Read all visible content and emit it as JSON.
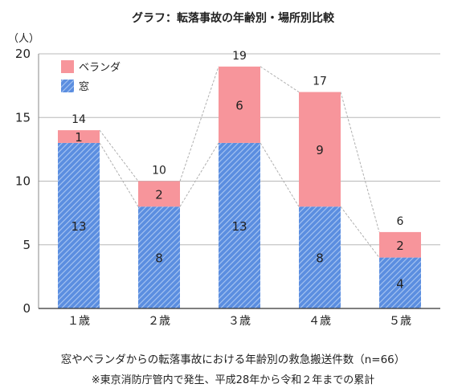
{
  "title": "グラフ：転落事故の年齢別・場所別比較",
  "captions": {
    "line1": "窓やベランダからの転落事故における年齢別の救急搬送件数（n=66）",
    "line2": "※東京消防庁管内で発生、平成28年から令和２年までの累計"
  },
  "colors": {
    "window": "#5b8ee0",
    "window_hatch": "#a9c6f2",
    "veranda": "#f7959b",
    "grid": "#b8b8b8",
    "connector": "#b0b0b0"
  },
  "chart_data": {
    "type": "bar",
    "stacked": true,
    "unit_label": "（人）",
    "categories": [
      "１歳",
      "２歳",
      "３歳",
      "４歳",
      "５歳"
    ],
    "series": [
      {
        "name": "窓",
        "values": [
          13,
          8,
          13,
          8,
          4
        ]
      },
      {
        "name": "ベランダ",
        "values": [
          1,
          2,
          6,
          9,
          2
        ]
      }
    ],
    "totals": [
      14,
      10,
      19,
      17,
      6
    ],
    "yticks": [
      0,
      5,
      10,
      15,
      20
    ],
    "ylim": [
      0,
      20
    ],
    "grid": true,
    "legend": "top-left"
  }
}
